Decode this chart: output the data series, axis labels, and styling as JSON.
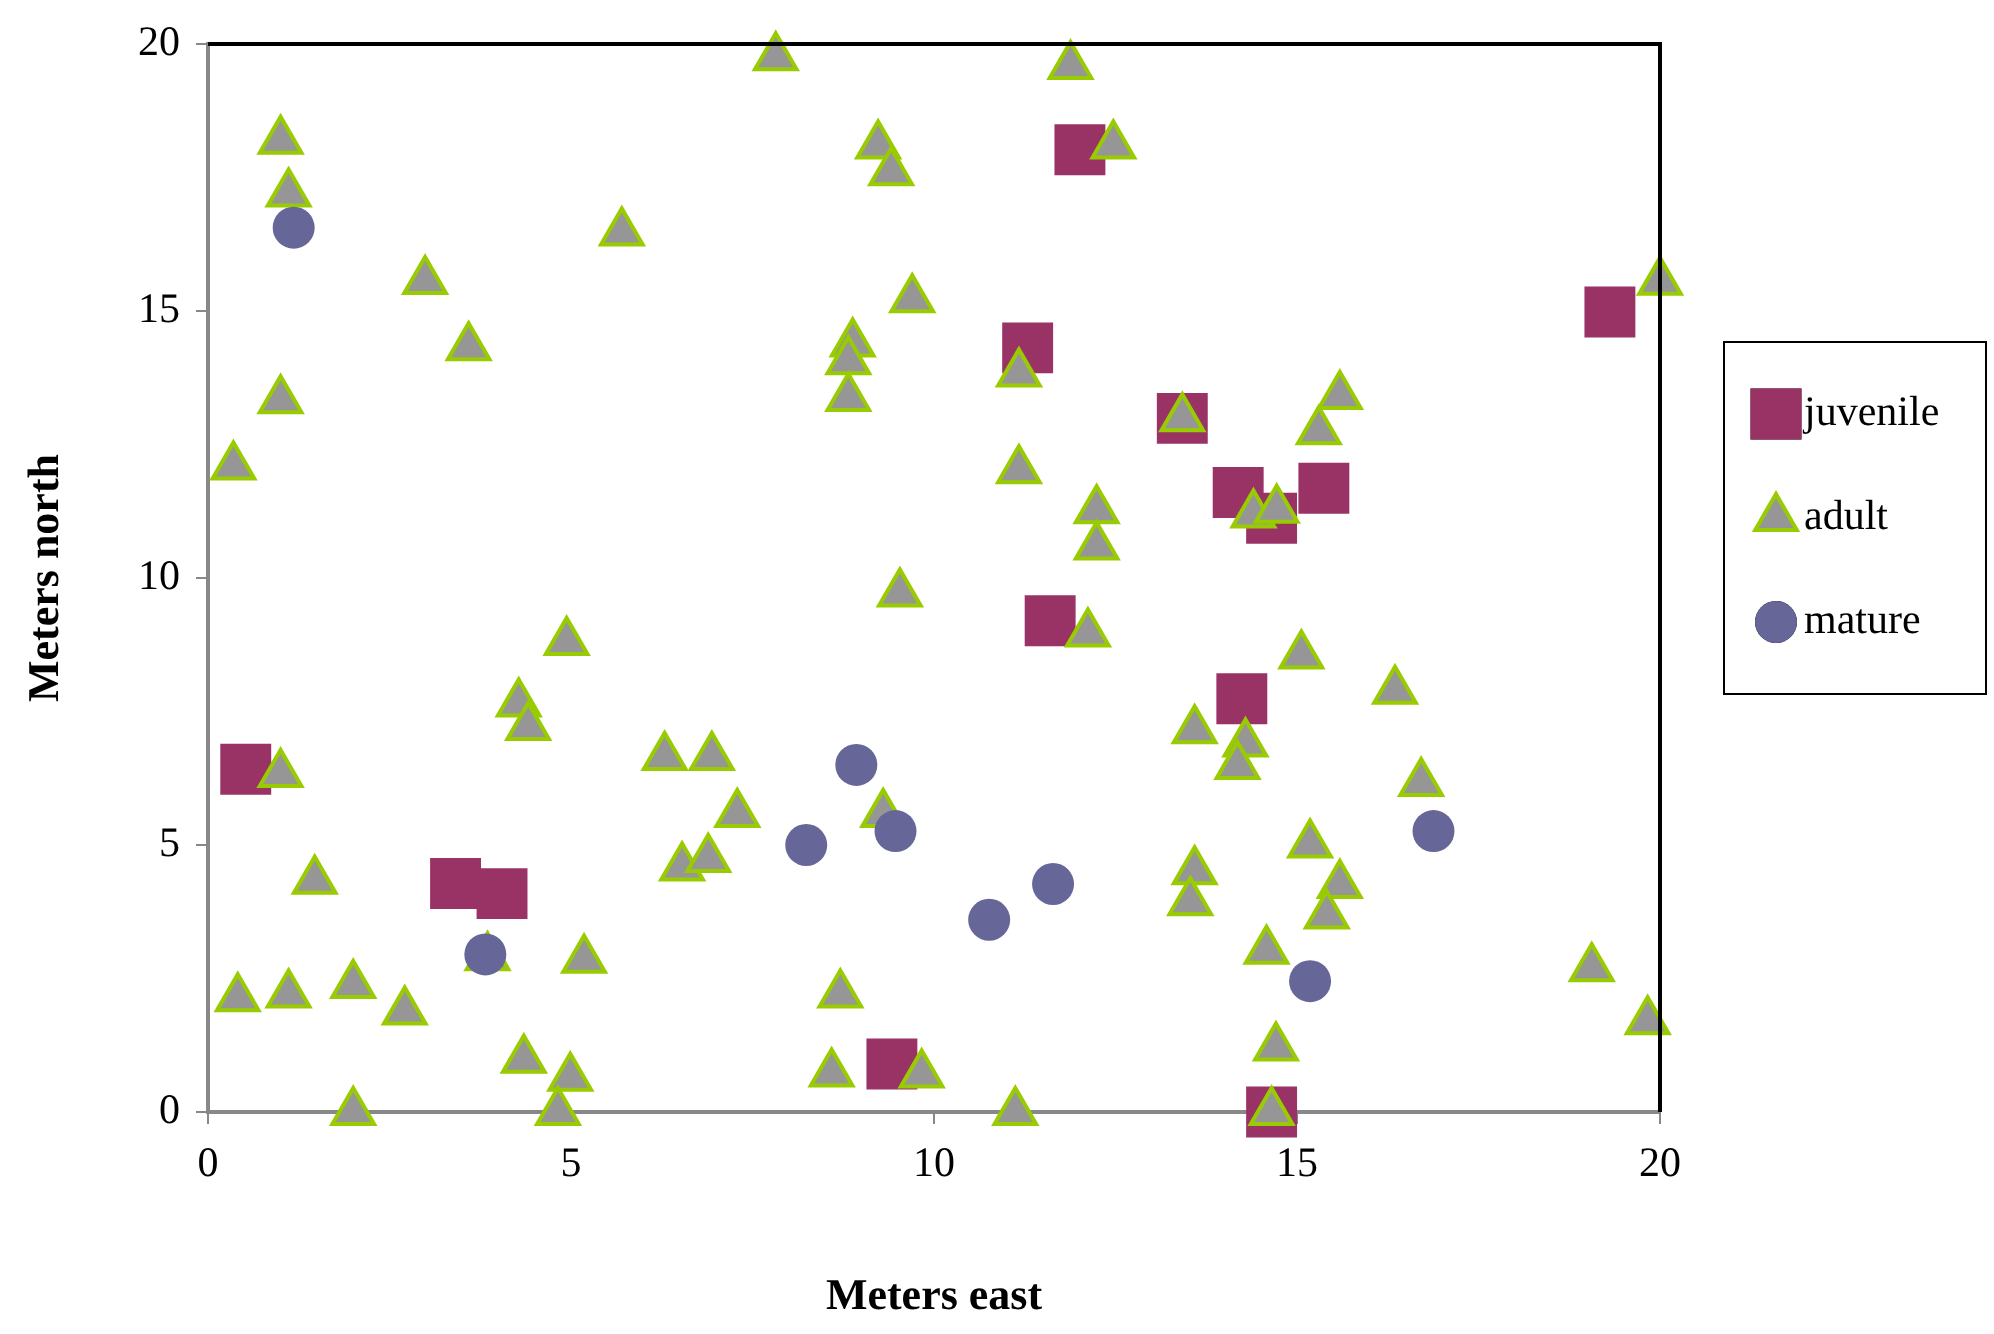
{
  "chart_data": {
    "type": "scatter",
    "xlabel": "Meters east",
    "ylabel": "Meters north",
    "xlim": [
      0,
      20
    ],
    "ylim": [
      0,
      20
    ],
    "xticks": [
      0,
      5,
      10,
      15,
      20
    ],
    "yticks": [
      0,
      5,
      10,
      15,
      20
    ],
    "grid": false,
    "legend": "right",
    "series": [
      {
        "name": "juvenile",
        "color": "#993366",
        "marker": "square",
        "x": [
          0.52,
          3.41,
          4.05,
          9.42,
          12.01,
          19.31,
          11.29,
          13.42,
          14.19,
          14.65,
          15.37,
          11.6,
          14.24,
          14.65
        ],
        "values": [
          6.42,
          4.28,
          4.09,
          0.9,
          18.02,
          14.98,
          14.31,
          12.99,
          11.6,
          11.12,
          11.68,
          9.2,
          7.74,
          0
        ]
      },
      {
        "name": "adult",
        "color": "#969696",
        "marker": "triangle",
        "x": [
          7.82,
          1.0,
          1.11,
          5.7,
          2.99,
          3.59,
          1.0,
          0.35,
          9.23,
          9.41,
          9.7,
          8.88,
          8.82,
          8.82,
          11.88,
          12.47,
          20.0,
          11.17,
          13.42,
          11.17,
          12.24,
          12.24,
          14.4,
          14.72,
          15.59,
          15.3,
          12.12,
          15.06,
          16.35,
          13.59,
          14.29,
          14.18,
          16.71,
          15.18,
          13.59,
          13.53,
          15.59,
          15.41,
          14.58,
          19.06,
          19.83,
          14.71,
          11.12,
          14.65,
          9.83,
          9.53,
          4.94,
          4.28,
          4.41,
          1.0,
          6.29,
          6.94,
          7.29,
          6.53,
          6.89,
          9.3,
          1.47,
          3.85,
          5.18,
          0.41,
          1.11,
          2.0,
          2.71,
          8.71,
          4.35,
          4.99,
          2.0,
          4.82,
          8.59
        ],
        "values": [
          19.75,
          18.19,
          17.2,
          16.47,
          15.56,
          14.32,
          13.33,
          12.09,
          18.1,
          17.6,
          15.22,
          14.39,
          14.06,
          13.37,
          19.59,
          18.1,
          15.55,
          13.83,
          12.99,
          12.02,
          11.27,
          10.59,
          11.19,
          11.28,
          13.41,
          12.75,
          8.96,
          8.55,
          7.89,
          7.15,
          6.9,
          6.48,
          6.16,
          5.01,
          4.51,
          3.93,
          4.25,
          3.68,
          3.02,
          2.69,
          1.7,
          1.21,
          0,
          0,
          0.7,
          9.71,
          8.8,
          7.65,
          7.21,
          6.33,
          6.65,
          6.65,
          5.58,
          4.58,
          4.74,
          5.58,
          4.33,
          2.9,
          2.85,
          2.13,
          2.2,
          2.38,
          1.88,
          2.2,
          0.98,
          0.64,
          0,
          0,
          0.72
        ]
      },
      {
        "name": "mature",
        "color": "#666699",
        "marker": "circle",
        "x": [
          1.18,
          16.88,
          11.64,
          10.76,
          15.18,
          8.93,
          9.47,
          8.24,
          3.82
        ],
        "values": [
          16.56,
          5.26,
          4.27,
          3.6,
          2.45,
          6.5,
          5.26,
          5.0,
          2.95
        ]
      }
    ]
  }
}
